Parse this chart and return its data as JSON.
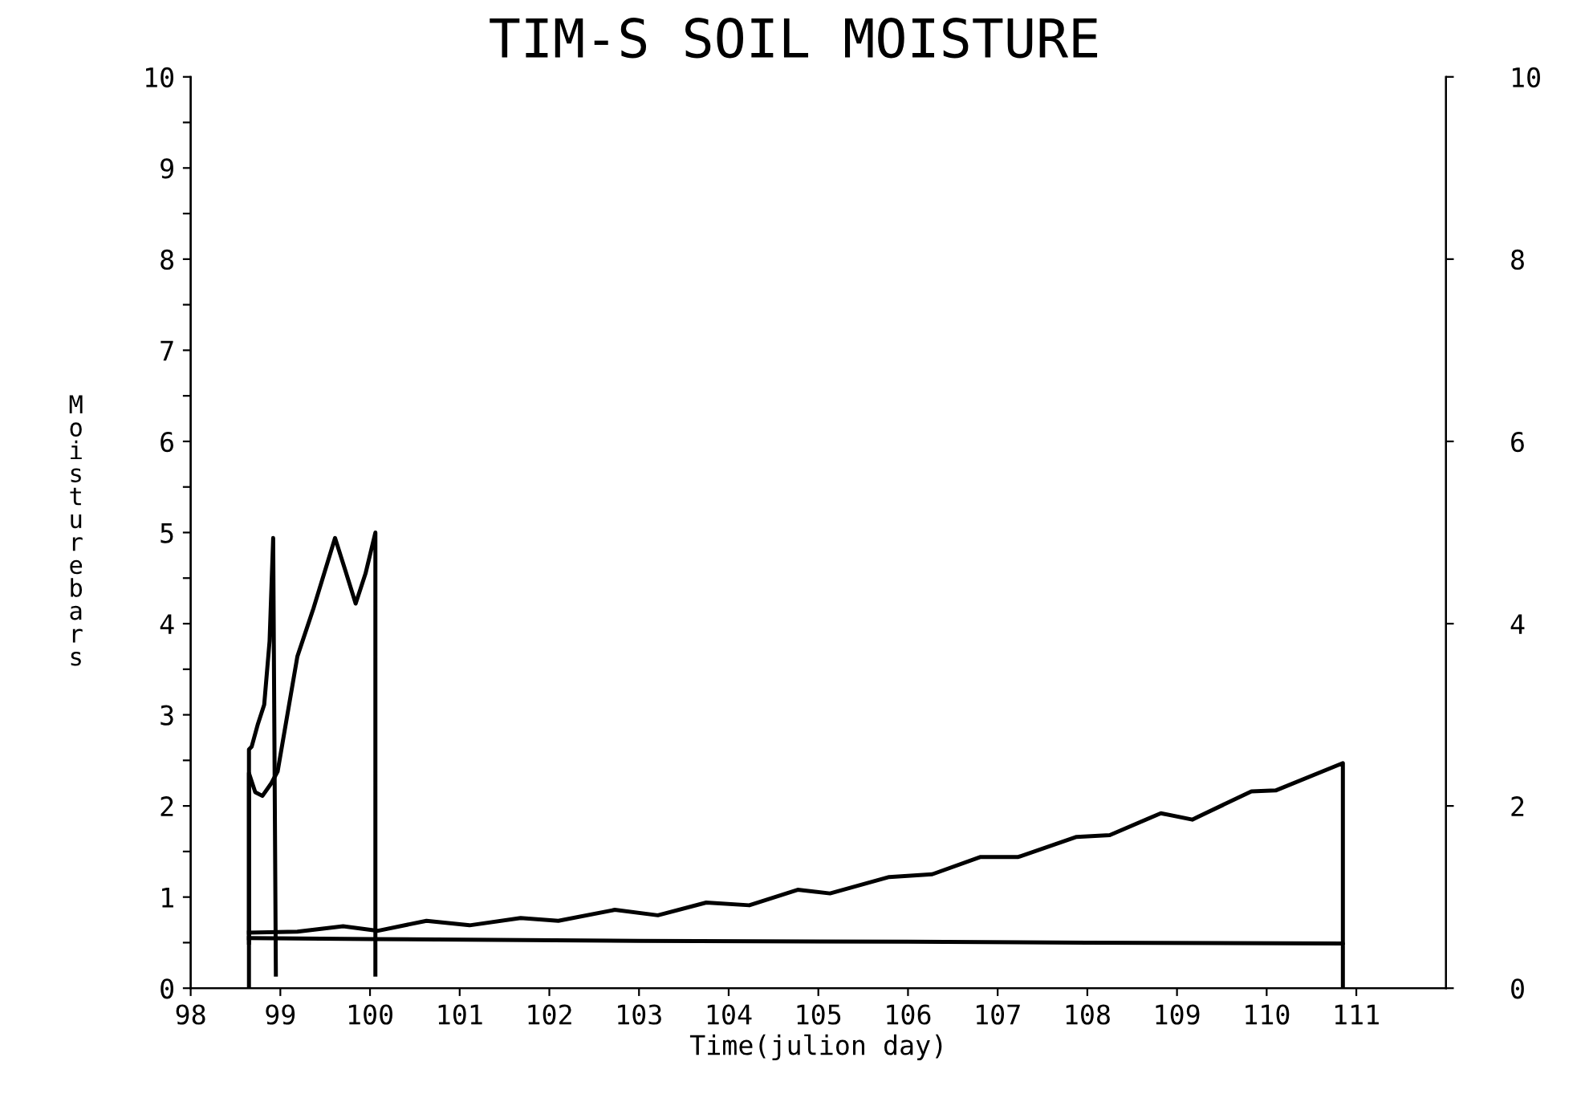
{
  "chart_data": {
    "type": "line",
    "title": "TIM-S SOIL MOISTURE",
    "xlabel": "Time(julion day)",
    "ylabel": "Moisturebars",
    "series": [
      {
        "color": "#000000",
        "x": [
          98.65,
          98.65,
          98.68,
          98.75,
          98.82,
          98.88,
          98.92,
          98.95
        ],
        "values": [
          0,
          2.62,
          2.65,
          2.9,
          3.11,
          3.81,
          4.94,
          0.15
        ]
      },
      {
        "color": "#000000",
        "x": [
          98.65,
          98.65,
          98.72,
          98.8,
          98.9,
          98.97,
          99.19,
          99.37,
          99.61,
          99.72,
          99.84,
          99.95,
          100.06,
          100.06
        ],
        "values": [
          0.5,
          2.36,
          2.15,
          2.11,
          2.25,
          2.38,
          3.64,
          4.17,
          4.94,
          4.6,
          4.22,
          4.55,
          5.0,
          0.15
        ]
      },
      {
        "color": "#000000",
        "x": [
          98.65,
          99.19,
          99.7,
          100.09,
          100.63,
          101.11,
          101.68,
          102.1,
          102.73,
          103.21,
          103.75,
          104.23,
          104.77,
          105.13,
          105.79,
          106.27,
          106.81,
          107.23,
          107.88,
          108.25,
          108.82,
          109.17,
          109.83,
          110.1,
          110.85,
          110.85
        ],
        "values": [
          0.61,
          0.62,
          0.68,
          0.63,
          0.74,
          0.69,
          0.77,
          0.74,
          0.86,
          0.8,
          0.94,
          0.91,
          1.08,
          1.04,
          1.22,
          1.25,
          1.44,
          1.44,
          1.66,
          1.68,
          1.92,
          1.85,
          2.16,
          2.17,
          2.47,
          0.5
        ]
      },
      {
        "color": "#000000",
        "x": [
          98.65,
          100.0,
          103.0,
          106.0,
          108.0,
          110.85,
          110.85
        ],
        "values": [
          0.55,
          0.54,
          0.52,
          0.51,
          0.5,
          0.49,
          0
        ]
      }
    ],
    "xlim": [
      98,
      112
    ],
    "xticks": [
      98,
      99,
      100,
      101,
      102,
      103,
      104,
      105,
      106,
      107,
      108,
      109,
      110,
      111
    ],
    "ylim": [
      0,
      10
    ],
    "yticks": [
      0,
      {
        "value": 0.5,
        "label": null
      },
      1,
      {
        "value": 1.5,
        "label": null
      },
      2,
      {
        "value": 2.5,
        "label": null
      },
      3,
      {
        "value": 3.5,
        "label": null
      },
      4,
      {
        "value": 4.5,
        "label": null
      },
      5,
      {
        "value": 5.5,
        "label": null
      },
      6,
      {
        "value": 6.5,
        "label": null
      },
      7,
      {
        "value": 7.5,
        "label": null
      },
      8,
      {
        "value": 8.5,
        "label": null
      },
      9,
      {
        "value": 9.5,
        "label": null
      },
      10
    ],
    "y2lim": [
      0,
      10
    ],
    "y2ticks": [
      0,
      2,
      4,
      6,
      8,
      10
    ],
    "grid": false,
    "legend": false,
    "marker": "none",
    "line_style": "solid"
  }
}
